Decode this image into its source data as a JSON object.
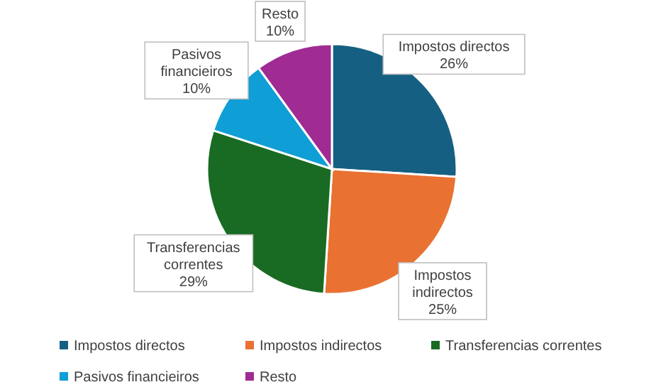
{
  "chart_data": {
    "type": "pie",
    "categories": [
      "Impostos directos",
      "Impostos indirectos",
      "Transferencias correntes",
      "Pasivos financieiros",
      "Resto"
    ],
    "values": [
      26,
      25,
      29,
      10,
      10
    ],
    "colors": [
      "#156082",
      "#e97132",
      "#196b24",
      "#0f9ed5",
      "#a02b93"
    ],
    "value_labels": [
      "26%",
      "25%",
      "29%",
      "10%",
      "10%"
    ],
    "legend": "bottom"
  }
}
